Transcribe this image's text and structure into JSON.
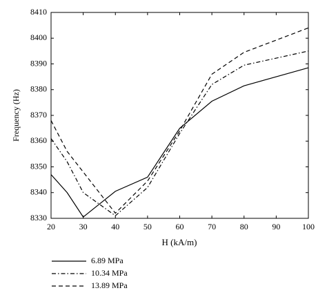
{
  "chart_data": {
    "type": "line",
    "xlabel": "H (kA/m)",
    "ylabel": "Frequency (Hz)",
    "x": [
      20,
      25,
      30,
      40,
      50,
      60,
      70,
      80,
      100
    ],
    "series": [
      {
        "name": "6.89 MPa",
        "color": "#000000",
        "linestyle": "solid",
        "values": [
          8347,
          8340,
          8330.5,
          8340.5,
          8346,
          8365,
          8375.5,
          8381.5,
          8388.5
        ]
      },
      {
        "name": "10.34 MPa",
        "color": "#000000",
        "linestyle": "dashdot",
        "values": [
          8361,
          8352,
          8340,
          8331,
          8342,
          8363,
          8382,
          8389.5,
          8395
        ]
      },
      {
        "name": "13.89 MPa",
        "color": "#000000",
        "linestyle": "dashed",
        "values": [
          8368,
          8356,
          8348,
          8332,
          8344.5,
          8364,
          8386,
          8394.5,
          8404
        ]
      }
    ],
    "xlim": [
      20,
      100
    ],
    "xticks": [
      20,
      30,
      40,
      50,
      60,
      70,
      80,
      90,
      100
    ],
    "ylim": [
      8330,
      8410
    ],
    "yticks": [
      8330,
      8340,
      8350,
      8360,
      8370,
      8380,
      8390,
      8400,
      8410
    ],
    "grid": false,
    "legend": "bottom"
  }
}
